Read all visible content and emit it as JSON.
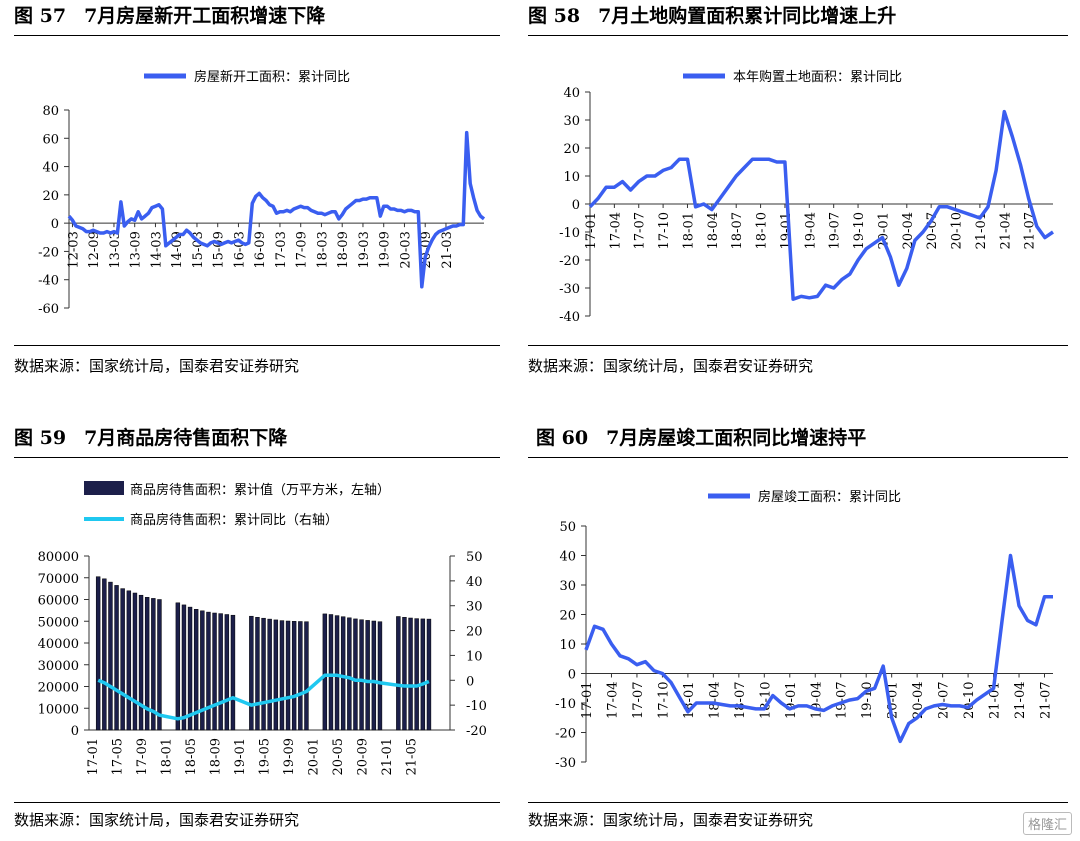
{
  "charts": [
    {
      "figure_no": "图 57",
      "title": "7月房屋新开工面积增速下降",
      "source": "数据来源：国家统计局，国泰君安证券研究"
    },
    {
      "figure_no": "图 58",
      "title": "7月土地购置面积累计同比增速上升",
      "source": "数据来源：国家统计局，国泰君安证券研究"
    },
    {
      "figure_no": "图 59",
      "title": "7月商品房待售面积下降",
      "source": "数据来源：国家统计局，国泰君安证券研究"
    },
    {
      "figure_no": "图 60",
      "title": "7月房屋竣工面积同比增速持平",
      "source": "数据来源：国家统计局，国泰君安证券研究"
    }
  ],
  "watermark": "格隆汇",
  "colors": {
    "blue": "#3a5ef0",
    "cyan": "#1fc8f0",
    "bar": "#1c1f4a"
  },
  "chart_data": [
    {
      "type": "line",
      "legend": [
        "房屋新开工面积：累计同比"
      ],
      "ylim": [
        -60,
        80
      ],
      "yticks": [
        80,
        60,
        40,
        20,
        0,
        -20,
        -40,
        -60
      ],
      "xticks": [
        "12-03",
        "12-09",
        "13-03",
        "13-09",
        "14-03",
        "14-09",
        "15-03",
        "15-09",
        "16-03",
        "16-09",
        "17-03",
        "17-09",
        "18-03",
        "18-09",
        "19-03",
        "19-09",
        "20-03",
        "20-09",
        "21-03"
      ],
      "x_start": "2012-02",
      "series": [
        {
          "name": "房屋新开工面积：累计同比",
          "values": [
            5,
            2,
            -2,
            -3,
            -4,
            -6,
            -6,
            -5,
            -6,
            -7,
            -7,
            -6,
            -7,
            -6,
            -7,
            15,
            -2,
            1,
            3,
            2,
            8,
            3,
            5,
            7,
            11,
            12,
            13,
            10,
            -16,
            -14,
            -12,
            -10,
            -8,
            -8,
            -5,
            -7,
            -10,
            -12,
            -14,
            -15,
            -16,
            -14,
            -13,
            -14,
            -15,
            -14,
            -13,
            -14,
            -13,
            -12,
            -14,
            -15,
            -14,
            14,
            19,
            21,
            18,
            16,
            13,
            12,
            7,
            8,
            8,
            9,
            8,
            10,
            11,
            12,
            11,
            11,
            9,
            8,
            7,
            7,
            6,
            7,
            8,
            8,
            3,
            6,
            10,
            12,
            14,
            16,
            16,
            17,
            17,
            18,
            18,
            18,
            5,
            12,
            12,
            10,
            10,
            9,
            9,
            8,
            9,
            9,
            8,
            8,
            -45,
            -24,
            -17,
            -12,
            -8,
            -6,
            -5,
            -4,
            -3,
            -2,
            -2,
            -1,
            -1,
            64,
            28,
            18,
            9,
            5,
            3
          ]
        }
      ]
    },
    {
      "type": "line",
      "legend": [
        "本年购置土地面积：累计同比"
      ],
      "ylim": [
        -40,
        40
      ],
      "yticks": [
        40,
        30,
        20,
        10,
        0,
        -10,
        -20,
        -30,
        -40
      ],
      "xticks": [
        "17-01",
        "17-04",
        "17-07",
        "17-10",
        "18-01",
        "18-04",
        "18-07",
        "18-10",
        "19-01",
        "19-04",
        "19-07",
        "19-10",
        "20-01",
        "20-04",
        "20-07",
        "20-10",
        "21-01",
        "21-04",
        "21-07"
      ],
      "x_start": "2017-01",
      "series": [
        {
          "name": "本年购置土地面积：累计同比",
          "values": [
            -1,
            2,
            6,
            6,
            8,
            5,
            8,
            10,
            10,
            12,
            13,
            16,
            16,
            -1,
            0,
            -2,
            2,
            6,
            10,
            13,
            16,
            16,
            16,
            15,
            15,
            -34,
            -33,
            -33.5,
            -33,
            -29,
            -30,
            -27,
            -25,
            -20,
            -16,
            -14,
            -12,
            -19,
            -29,
            -23,
            -13,
            -10,
            -6,
            -1,
            -1,
            -2,
            -3,
            -4,
            -5,
            -1,
            12,
            33,
            24,
            14,
            2,
            -8,
            -12,
            -10
          ]
        }
      ]
    },
    {
      "type": "bar",
      "legend": [
        "商品房待售面积：累计值（万平方米，左轴）",
        "商品房待售面积：累计同比（右轴）"
      ],
      "ylim": [
        0,
        80000
      ],
      "ylim_right": [
        -20,
        50
      ],
      "yticks": [
        80000,
        70000,
        60000,
        50000,
        40000,
        30000,
        20000,
        10000,
        0
      ],
      "yticks_right": [
        50,
        40,
        30,
        20,
        10,
        0,
        -10,
        -20
      ],
      "xticks": [
        "17-01",
        "17-05",
        "17-09",
        "18-01",
        "18-05",
        "18-09",
        "19-01",
        "19-05",
        "19-09",
        "20-01",
        "20-05",
        "20-09",
        "21-01",
        "21-05"
      ],
      "x_start": "2017-01",
      "series": [
        {
          "name": "商品房待售面积：累计值（万平方米，左轴）",
          "values": [
            null,
            70500,
            69500,
            68000,
            66500,
            65000,
            64000,
            63000,
            62000,
            61000,
            60500,
            60000,
            null,
            null,
            58500,
            57500,
            56500,
            55500,
            54800,
            54200,
            53800,
            53500,
            53100,
            52800,
            null,
            null,
            52300,
            51800,
            51400,
            51000,
            50600,
            50300,
            50100,
            50000,
            49900,
            49800,
            null,
            null,
            53400,
            53100,
            52600,
            52100,
            51600,
            51100,
            50700,
            50400,
            50100,
            49800,
            null,
            null,
            52200,
            51800,
            51500,
            51200,
            51100,
            51000
          ]
        },
        {
          "name": "商品房待售面积：累计同比（右轴）",
          "values": [
            null,
            0,
            -1,
            -2.5,
            -4,
            -5.5,
            -7,
            -8.5,
            -10,
            -11.5,
            -12.5,
            -14,
            null,
            null,
            -15.5,
            -15,
            -14,
            -13,
            -12,
            -11,
            -10,
            -9,
            -8,
            -7,
            null,
            null,
            -10,
            -9.5,
            -9,
            -8.5,
            -8,
            -7.5,
            -7,
            -6.5,
            -5.5,
            -4.5,
            null,
            null,
            2,
            2,
            2,
            1.5,
            1,
            0,
            0,
            -0.5,
            -0.5,
            -1,
            null,
            null,
            -2,
            -2.3,
            -2.3,
            -2.3,
            -1.5,
            -0.5
          ]
        }
      ]
    },
    {
      "type": "line",
      "legend": [
        "房屋竣工面积：累计同比"
      ],
      "ylim": [
        -30,
        50
      ],
      "yticks": [
        50,
        40,
        30,
        20,
        10,
        0,
        -10,
        -20,
        -30
      ],
      "xticks": [
        "17-01",
        "17-04",
        "17-07",
        "17-10",
        "18-01",
        "18-04",
        "18-07",
        "18-10",
        "19-01",
        "19-04",
        "19-07",
        "19-10",
        "20-01",
        "20-04",
        "20-07",
        "20-10",
        "21-01",
        "21-04",
        "21-07"
      ],
      "x_start": "2017-01",
      "series": [
        {
          "name": "房屋竣工面积：累计同比",
          "values": [
            8,
            16,
            15,
            10,
            6,
            5,
            3,
            4,
            1,
            0,
            -3,
            -8,
            -13,
            -10,
            -10,
            -10,
            -10.5,
            -11,
            -11,
            -11.5,
            -12,
            -12,
            -7.5,
            -10,
            -12,
            -11,
            -11,
            -12,
            -12.5,
            -11,
            -10,
            -9,
            -8.5,
            -6,
            -5,
            2.5,
            -15,
            -23,
            -17,
            -15,
            -12,
            -11,
            -10.5,
            -11,
            -11,
            -11.5,
            -9,
            -7,
            -5,
            18,
            40,
            23,
            18,
            16.5,
            26,
            26
          ]
        }
      ]
    }
  ]
}
